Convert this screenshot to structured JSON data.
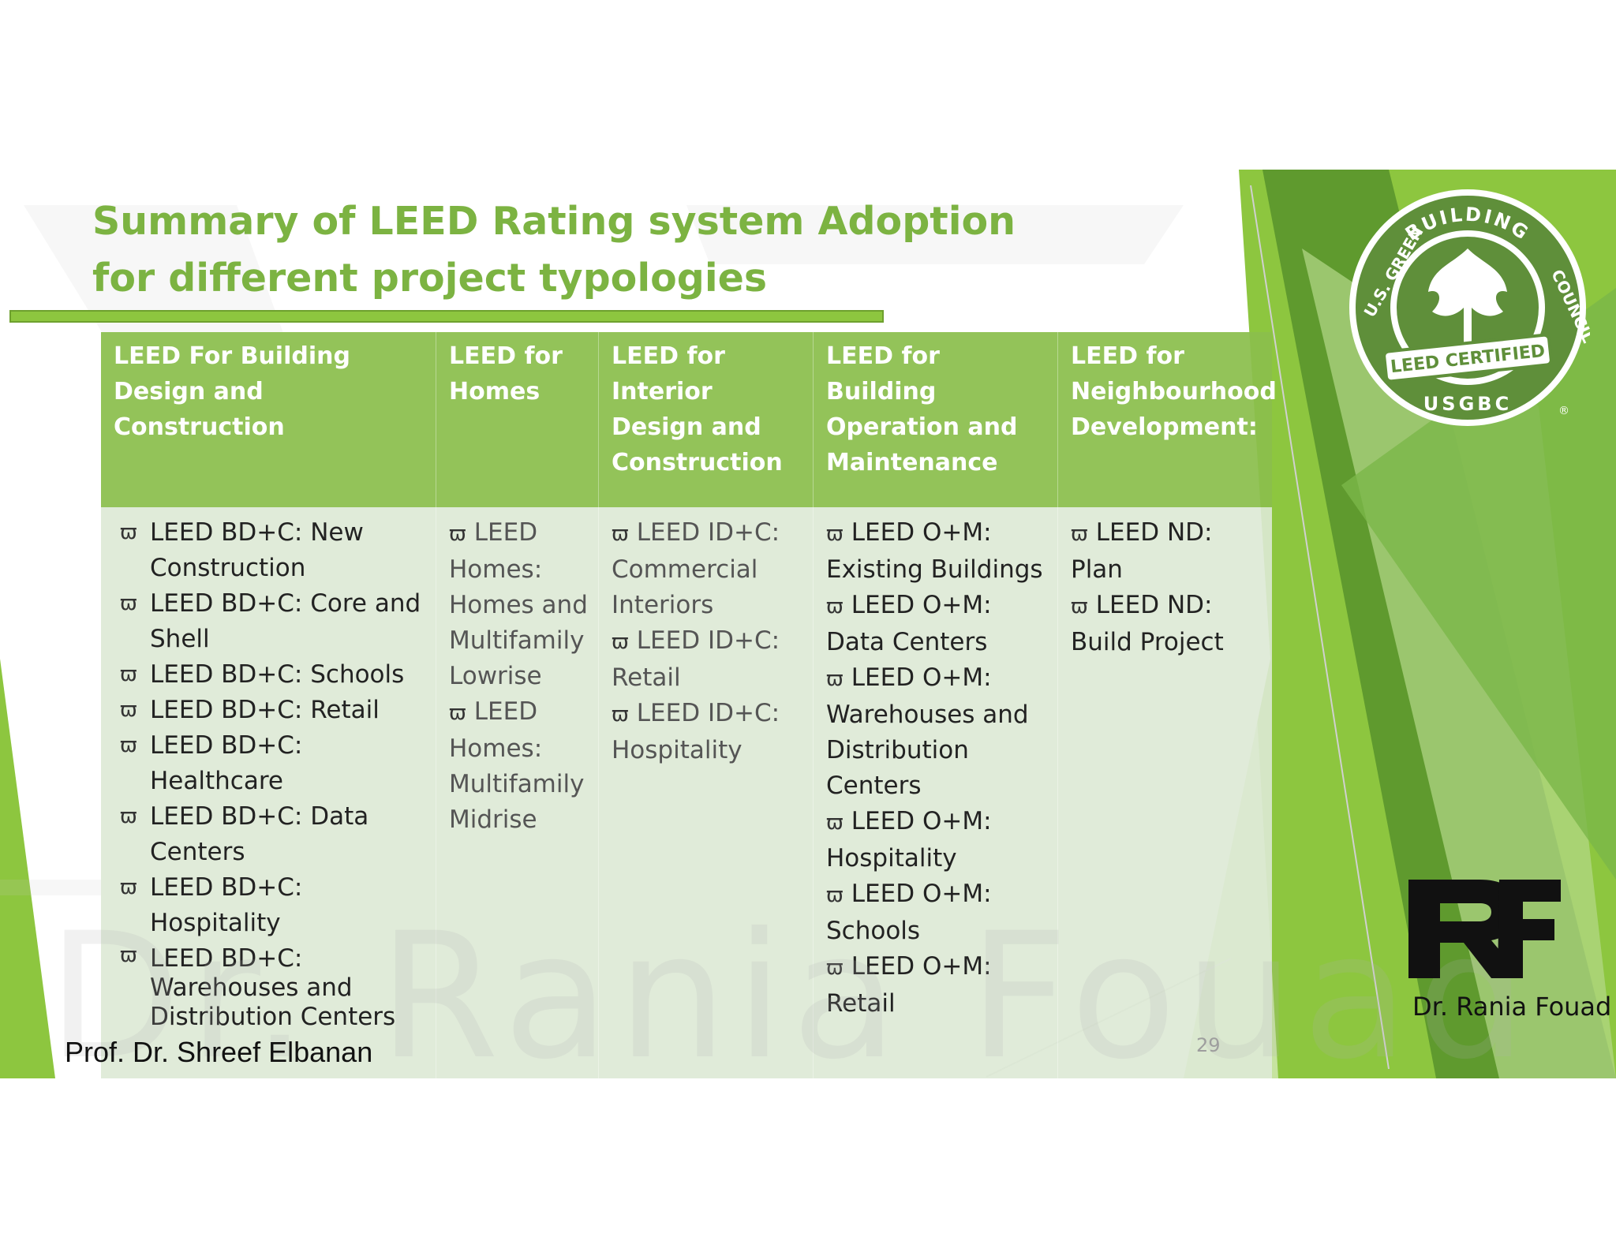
{
  "slide": {
    "title": "Summary of LEED Rating system Adoption for different project typologies",
    "author": "Prof. Dr. Shreef Elbanan",
    "page_number": "29",
    "watermark": "Dr. Rania Fouad"
  },
  "columns": [
    {
      "header": "LEED For Building Design and Construction",
      "items": [
        "LEED BD+C: New Construction",
        "LEED BD+C: Core and Shell",
        "LEED BD+C: Schools",
        "LEED BD+C: Retail",
        "LEED BD+C: Healthcare",
        "LEED BD+C: Data Centers",
        "LEED BD+C: Hospitality",
        "LEED BD+C: Warehouses and Distribution Centers"
      ]
    },
    {
      "header": "LEED for Homes",
      "items": [
        "LEED Homes: Homes and Multifamily Lowrise",
        "LEED Homes: Multifamily Midrise"
      ]
    },
    {
      "header": "LEED for Interior Design and Construction",
      "items": [
        "LEED ID+C: Commercial Interiors",
        "LEED ID+C: Retail",
        "LEED ID+C: Hospitality"
      ]
    },
    {
      "header": "LEED for Building Operation and Maintenance",
      "items": [
        "LEED O+M: Existing Buildings",
        "LEED O+M: Data Centers",
        "LEED O+M: Warehouses and Distribution Centers",
        "LEED O+M: Hospitality",
        "LEED O+M: Schools",
        "LEED O+M: Retail"
      ]
    },
    {
      "header": "LEED for Neighbourhood Development:",
      "items": [
        "LEED ND: Plan",
        "LEED ND: Build Project"
      ]
    }
  ],
  "bullet_symbol": "ϖ",
  "logos": {
    "usgbc_top": "BUILDING",
    "usgbc_left": "U.S. GREEN",
    "usgbc_right": "COUNCIL",
    "usgbc_banner": "LEED CERTIFIED",
    "usgbc_bottom": "USGBC",
    "registered": "®",
    "rf_caption": "Dr. Rania Fouad"
  },
  "colors": {
    "accent_green": "#7cb342",
    "header_green": "#8bbe4c",
    "body_tint": "#dde9d5"
  }
}
